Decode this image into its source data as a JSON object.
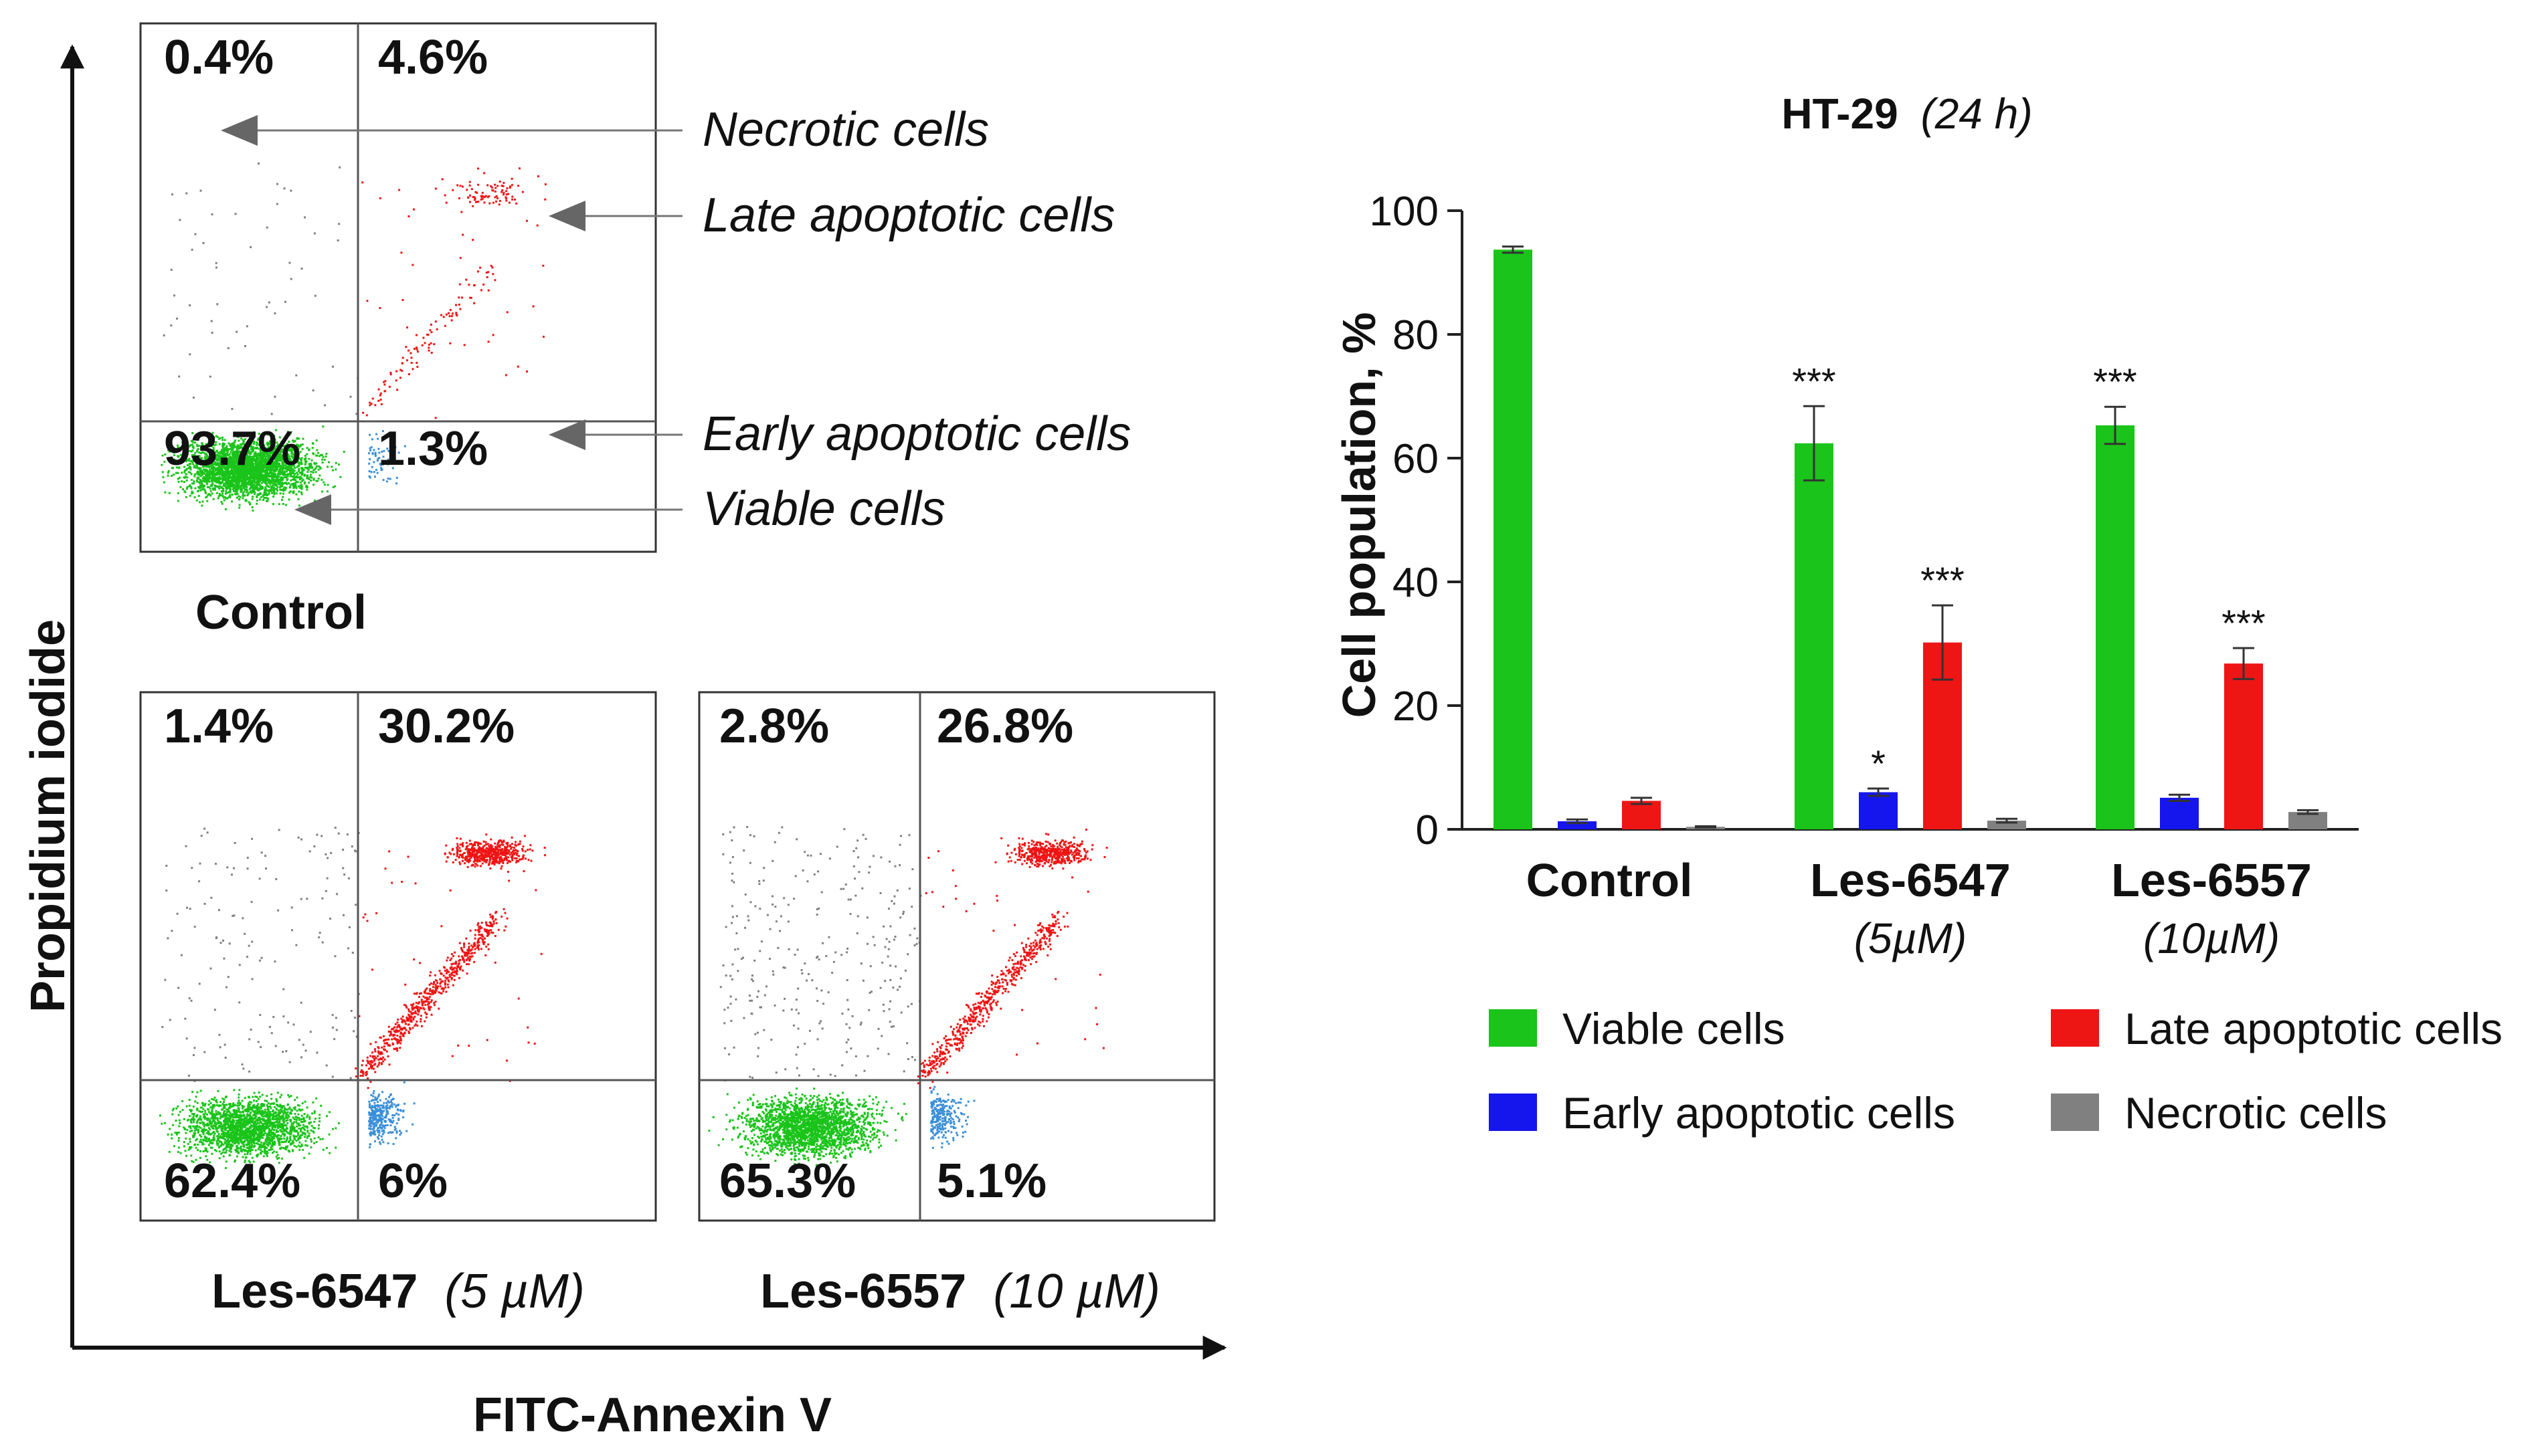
{
  "colors": {
    "viable": "#1ac41a",
    "early": "#1515ee",
    "late": "#ee1515",
    "necrotic": "#808080",
    "early_dot": "#3a8fd8",
    "axis": "#222222",
    "arrow": "#666666"
  },
  "flow": {
    "y_axis_label": "Propidium iodide",
    "x_axis_label": "FITC-Annexin V",
    "annotations": {
      "necrotic": "Necrotic cells",
      "late": "Late apoptotic cells",
      "early": "Early apoptotic cells",
      "viable": "Viable cells"
    },
    "panels": [
      {
        "name_main": "Control",
        "name_conc": "",
        "q_ul": "0.4%",
        "q_ur": "4.6%",
        "q_ll": "93.7%",
        "q_lr": "1.3%",
        "fractions": {
          "necrotic": 0.4,
          "late": 4.6,
          "viable": 93.7,
          "early": 1.3
        }
      },
      {
        "name_main": "Les-6547",
        "name_conc": "(5 µM)",
        "q_ul": "1.4%",
        "q_ur": "30.2%",
        "q_ll": "62.4%",
        "q_lr": "6%",
        "fractions": {
          "necrotic": 1.4,
          "late": 30.2,
          "viable": 62.4,
          "early": 6
        }
      },
      {
        "name_main": "Les-6557",
        "name_conc": "(10 µM)",
        "q_ul": "2.8%",
        "q_ur": "26.8%",
        "q_ll": "65.3%",
        "q_lr": "5.1%",
        "fractions": {
          "necrotic": 2.8,
          "late": 26.8,
          "viable": 65.3,
          "early": 5.1
        }
      }
    ]
  },
  "chart_data": {
    "type": "bar",
    "title": "HT-29",
    "title_suffix": "(24 h)",
    "xlabel": "",
    "ylabel": "Cell population, %",
    "ylim": [
      0,
      100
    ],
    "yticks": [
      0,
      20,
      40,
      60,
      80,
      100
    ],
    "categories": [
      {
        "name": "Control",
        "sub": ""
      },
      {
        "name": "Les-6547",
        "sub": "(5µM)"
      },
      {
        "name": "Les-6557",
        "sub": "(10µM)"
      }
    ],
    "series": [
      {
        "name": "Viable cells",
        "color": "#1ac41a",
        "values": [
          93.7,
          62.4,
          65.3
        ],
        "errors": [
          0.5,
          6.0,
          3.0
        ],
        "sig": [
          "",
          "***",
          "***"
        ]
      },
      {
        "name": "Early apoptotic cells",
        "color": "#1515ee",
        "values": [
          1.3,
          6.0,
          5.1
        ],
        "errors": [
          0.3,
          0.6,
          0.5
        ],
        "sig": [
          "",
          "*",
          ""
        ]
      },
      {
        "name": "Late apoptotic cells",
        "color": "#ee1515",
        "values": [
          4.6,
          30.2,
          26.8
        ],
        "errors": [
          0.5,
          6.0,
          2.5
        ],
        "sig": [
          "",
          "***",
          "***"
        ]
      },
      {
        "name": "Necrotic cells",
        "color": "#808080",
        "values": [
          0.4,
          1.4,
          2.8
        ],
        "errors": [
          0.1,
          0.3,
          0.3
        ],
        "sig": [
          "",
          "",
          ""
        ]
      }
    ]
  }
}
